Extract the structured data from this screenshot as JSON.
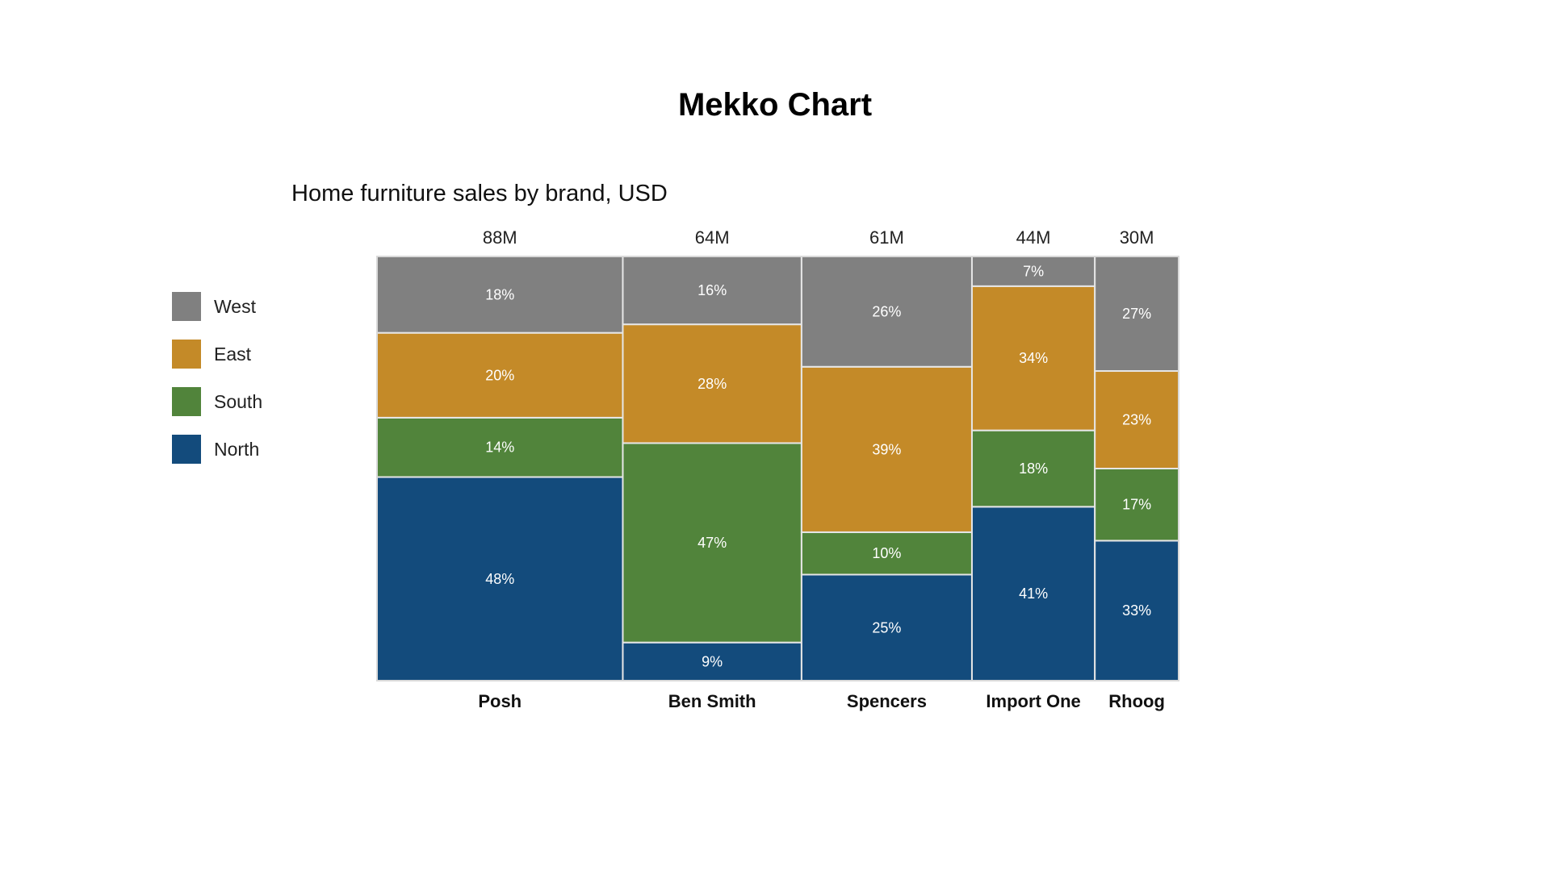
{
  "chart_data": {
    "type": "mekko",
    "title": "Mekko Chart",
    "subtitle": "Home furniture sales by brand, USD",
    "categories": [
      "Posh",
      "Ben Smith",
      "Spencers",
      "Import One",
      "Rhoog"
    ],
    "widths": [
      88,
      64,
      61,
      44,
      30
    ],
    "width_labels": [
      "88M",
      "64M",
      "61M",
      "44M",
      "30M"
    ],
    "series": [
      {
        "name": "North",
        "color": "#134b7c",
        "values": [
          48,
          9,
          25,
          41,
          33
        ]
      },
      {
        "name": "South",
        "color": "#51843b",
        "values": [
          14,
          47,
          10,
          18,
          17
        ]
      },
      {
        "name": "East",
        "color": "#c48a28",
        "values": [
          20,
          28,
          39,
          34,
          23
        ]
      },
      {
        "name": "West",
        "color": "#808080",
        "values": [
          18,
          16,
          26,
          7,
          27
        ]
      }
    ],
    "value_suffix": "%",
    "legend": [
      "West",
      "East",
      "South",
      "North"
    ],
    "legend_placement": "left",
    "grid": false
  }
}
